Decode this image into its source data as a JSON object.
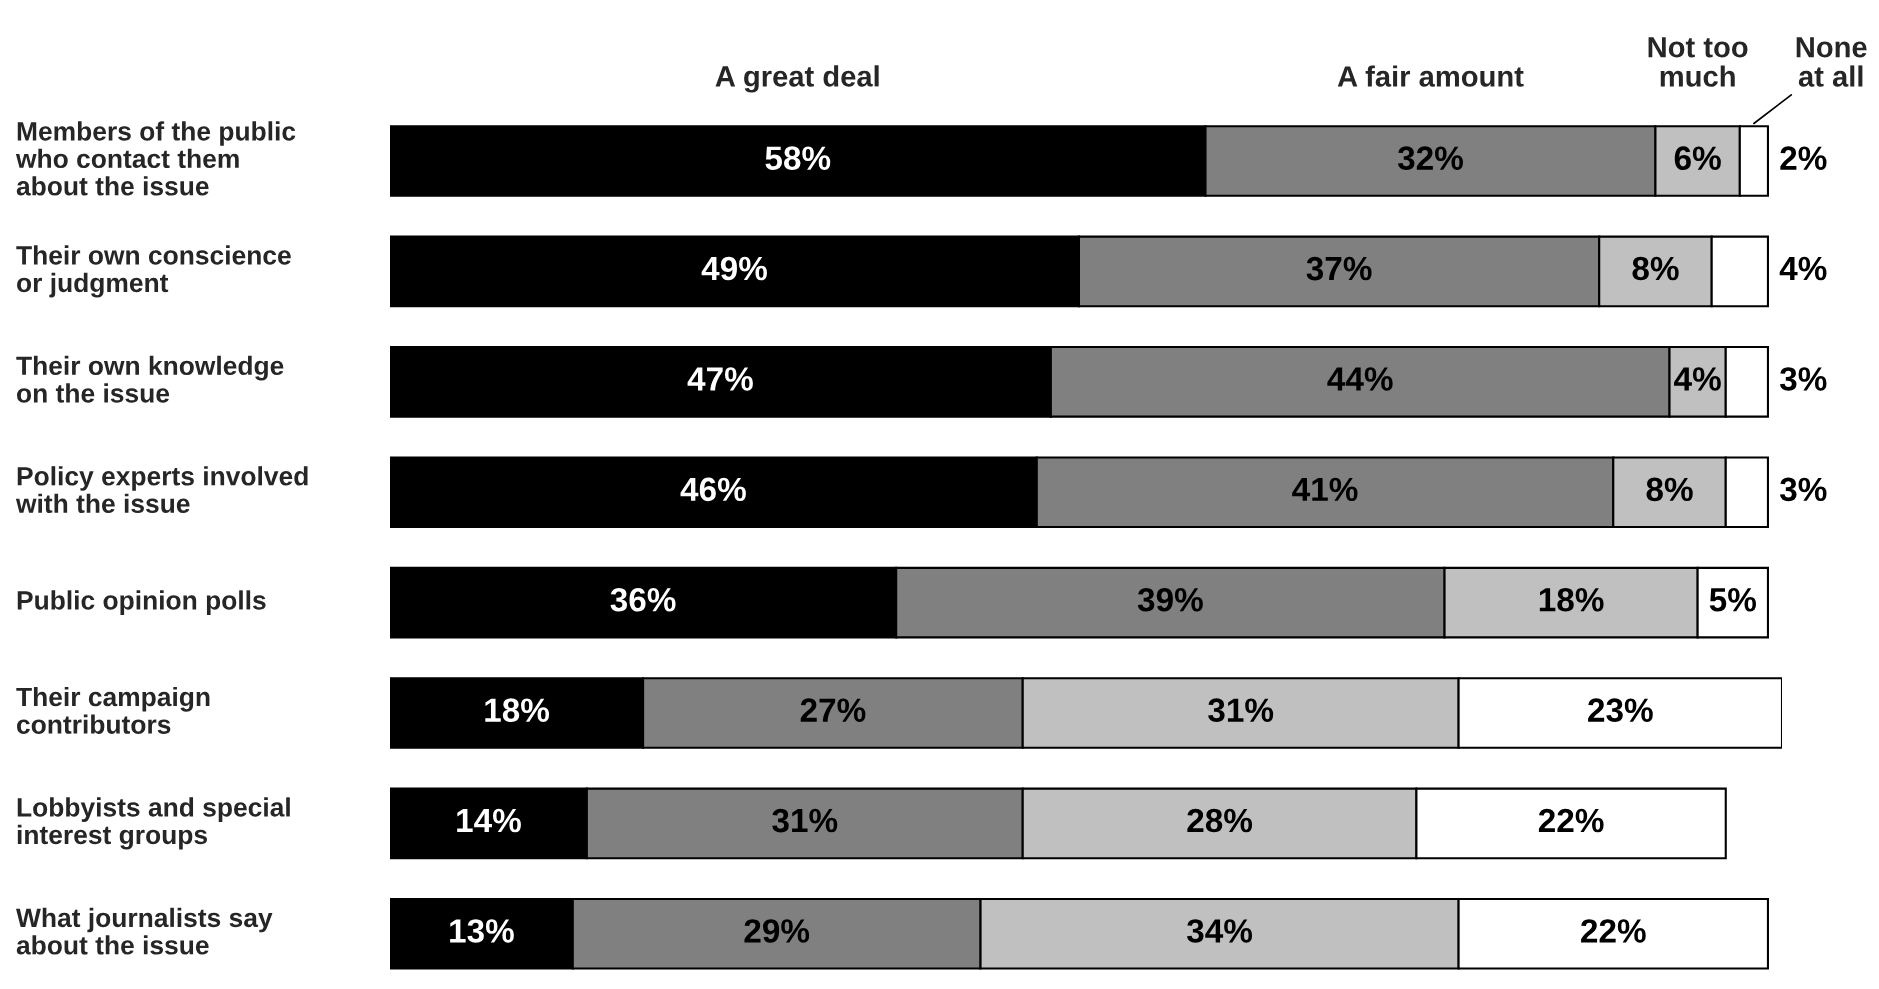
{
  "chart_data": {
    "type": "bar",
    "orientation": "horizontal",
    "stacked": true,
    "legend": "top",
    "categories": [
      "Members of the public\nwho contact them\nabout the issue",
      "Their own conscience\nor judgment",
      "Their own knowledge\non the issue",
      "Policy experts involved\nwith the issue",
      "Public opinion polls",
      "Their campaign\ncontributors",
      "Lobbyists and special\ninterest groups",
      "What journalists say\nabout the issue"
    ],
    "series": [
      {
        "name": "A great deal",
        "color": "#000000",
        "values": [
          58,
          49,
          47,
          46,
          36,
          18,
          14,
          13
        ],
        "value_labels": [
          "58%",
          "49%",
          "47%",
          "46%",
          "36%",
          "18%",
          "14%",
          "13%"
        ]
      },
      {
        "name": "A fair amount",
        "color": "#808080",
        "values": [
          32,
          37,
          44,
          41,
          39,
          27,
          31,
          29
        ],
        "value_labels": [
          "32%",
          "37%",
          "44%",
          "41%",
          "39%",
          "27%",
          "31%",
          "29%"
        ]
      },
      {
        "name": "Not too\nmuch",
        "color": "#c0c0c0",
        "values": [
          6,
          8,
          4,
          8,
          18,
          31,
          28,
          34
        ],
        "value_labels": [
          "6%",
          "8%",
          "4%",
          "8%",
          "18%",
          "31%",
          "28%",
          "34%"
        ]
      },
      {
        "name": "None\nat all",
        "color": "#ffffff",
        "values": [
          2,
          4,
          3,
          3,
          5,
          23,
          22,
          22
        ],
        "value_labels": [
          "2%",
          "4%",
          "3%",
          "3%",
          "5%",
          "23%",
          "22%",
          "22%"
        ]
      }
    ]
  }
}
